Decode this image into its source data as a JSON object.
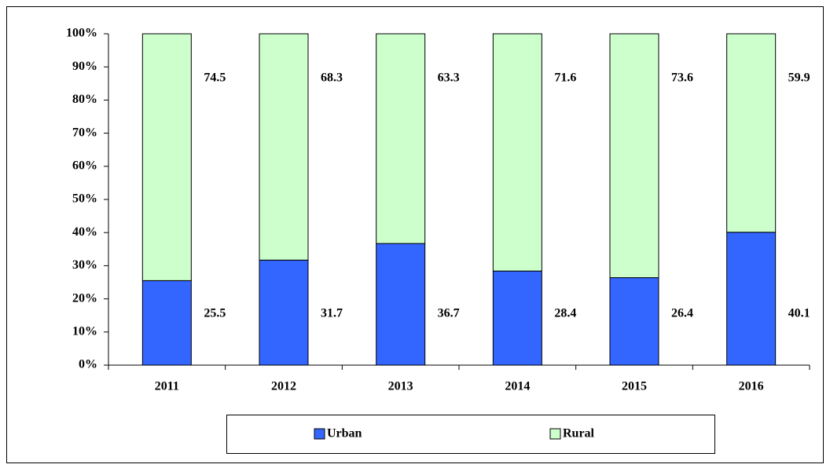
{
  "chart_data": {
    "type": "stacked_bar",
    "categories": [
      "2011",
      "2012",
      "2013",
      "2014",
      "2015",
      "2016"
    ],
    "series": [
      {
        "name": "Urban",
        "color": "#3366ff",
        "values": [
          25.5,
          31.7,
          36.7,
          28.4,
          26.4,
          40.1
        ]
      },
      {
        "name": "Rural",
        "color": "#ccffcc",
        "values": [
          74.5,
          68.3,
          63.3,
          71.6,
          73.6,
          59.9
        ]
      }
    ],
    "ylim": [
      0,
      100
    ],
    "yticks": [
      {
        "value": 0,
        "label": "0%"
      },
      {
        "value": 10,
        "label": "10%"
      },
      {
        "value": 20,
        "label": "20%"
      },
      {
        "value": 30,
        "label": "30%"
      },
      {
        "value": 40,
        "label": "40%"
      },
      {
        "value": 50,
        "label": "50%"
      },
      {
        "value": 60,
        "label": "60%"
      },
      {
        "value": 70,
        "label": "70%"
      },
      {
        "value": 80,
        "label": "80%"
      },
      {
        "value": 90,
        "label": "90%"
      },
      {
        "value": 100,
        "label": "100%"
      }
    ],
    "legend": "bottom"
  }
}
